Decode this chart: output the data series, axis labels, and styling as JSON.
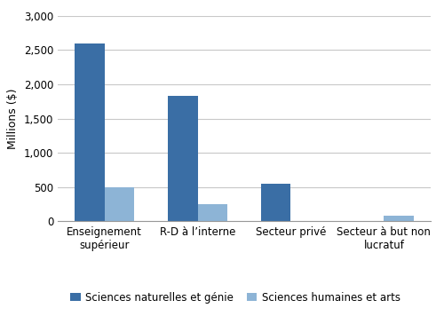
{
  "categories": [
    "Enseignement\nsupérieur",
    "R-D à l’interne",
    "Secteur privé",
    "Secteur à but non\nlucratuf"
  ],
  "series": [
    {
      "label": "Sciences naturelles et génie",
      "color": "#3A6EA5",
      "values": [
        2600,
        1830,
        550,
        0
      ]
    },
    {
      "label": "Sciences humaines et arts",
      "color": "#8DB4D6",
      "values": [
        500,
        250,
        0,
        75
      ]
    }
  ],
  "ylabel": "Millions ($)",
  "ylim": [
    0,
    3000
  ],
  "yticks": [
    0,
    500,
    1000,
    1500,
    2000,
    2500,
    3000
  ],
  "bar_width": 0.32,
  "background_color": "#ffffff",
  "grid_color": "#c8c8c8",
  "tick_fontsize": 8.5,
  "label_fontsize": 9,
  "legend_fontsize": 8.5
}
